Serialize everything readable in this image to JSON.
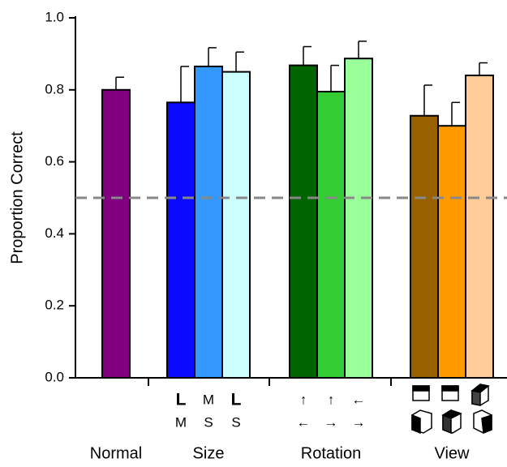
{
  "chart_data": {
    "type": "bar",
    "y_label": "Proportion Correct",
    "ylim": [
      0,
      1.0
    ],
    "yticks": [
      {
        "value": 0,
        "label": "0.0"
      },
      0.2,
      0.4,
      0.6,
      0.8,
      {
        "value": 1.0,
        "label": "1.0"
      }
    ],
    "reference_line": 0.5,
    "groups": [
      {
        "label": "Normal",
        "bars": [
          {
            "color": "#800080",
            "value": 0.8,
            "error": 0.035
          }
        ]
      },
      {
        "label": "Size",
        "bars": [
          {
            "color": "#0a0aff",
            "value": 0.765,
            "error": 0.1,
            "top": "L",
            "bottom": "M",
            "emphasis": true
          },
          {
            "color": "#3399ff",
            "value": 0.865,
            "error": 0.052,
            "top": "M",
            "bottom": "S",
            "emphasis": false
          },
          {
            "color": "#ccffff",
            "value": 0.85,
            "error": 0.055,
            "top": "L",
            "bottom": "S",
            "emphasis": true
          }
        ]
      },
      {
        "label": "Rotation",
        "bars": [
          {
            "color": "#006400",
            "value": 0.868,
            "error": 0.052,
            "top": "↑",
            "bottom": "←"
          },
          {
            "color": "#33cc33",
            "value": 0.795,
            "error": 0.073,
            "top": "↑",
            "bottom": "→"
          },
          {
            "color": "#99ff99",
            "value": 0.887,
            "error": 0.048,
            "top": "←",
            "bottom": "→"
          }
        ]
      },
      {
        "label": "View",
        "bars": [
          {
            "color": "#996000",
            "value": 0.728,
            "error": 0.085
          },
          {
            "color": "#ff9900",
            "value": 0.7,
            "error": 0.065
          },
          {
            "color": "#ffcc99",
            "value": 0.84,
            "error": 0.035
          }
        ]
      }
    ]
  }
}
